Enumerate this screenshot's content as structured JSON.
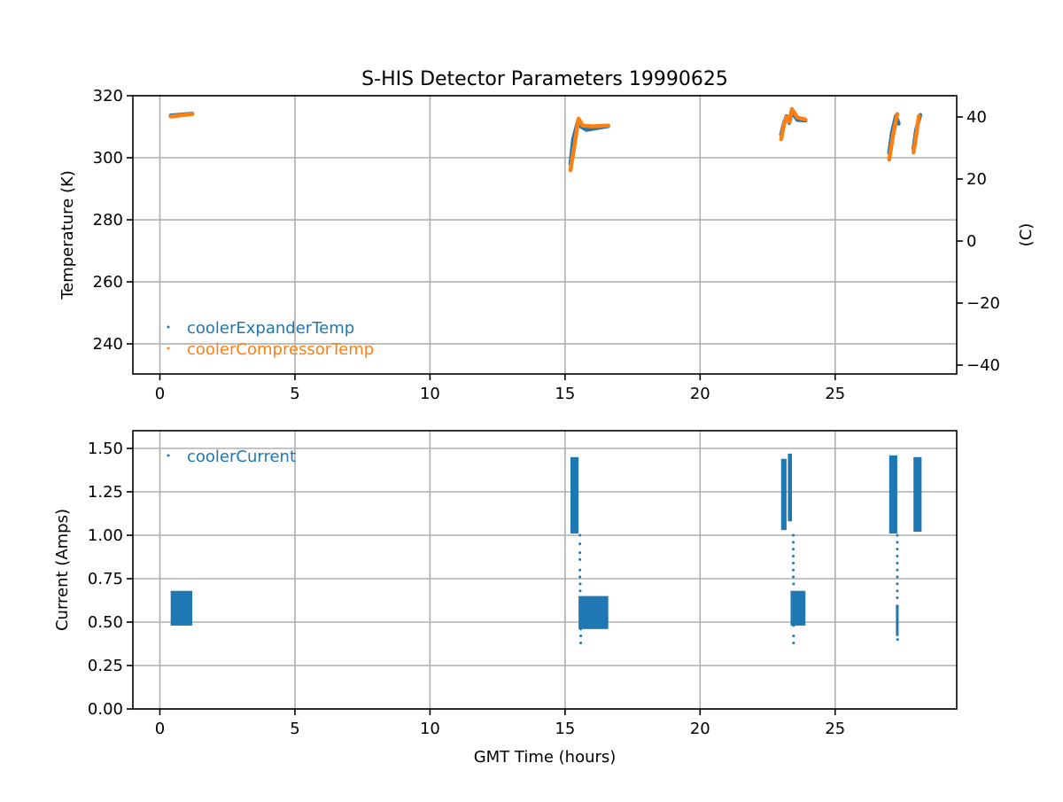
{
  "chart_data": [
    {
      "type": "scatter",
      "title": "S-HIS Detector Parameters 19990625",
      "xlabel": "",
      "ylabel": "Temperature (K)",
      "ylabel_right": "(C)",
      "xlim": [
        -1,
        29.5
      ],
      "ylim": [
        230.3,
        320
      ],
      "ylim_right": [
        -42.85,
        46.85
      ],
      "xticks": [
        0,
        5,
        10,
        15,
        20,
        25
      ],
      "yticks": [
        240,
        260,
        280,
        300,
        320
      ],
      "yticks_right": [
        -40,
        -20,
        0,
        20,
        40
      ],
      "yticklabels_right": [
        "−40",
        "−20",
        "0",
        "20",
        "40"
      ],
      "grid": true,
      "legend": "lower-left",
      "series": [
        {
          "name": "coolerExpanderTemp",
          "color": "#1f77b4",
          "segments": [
            [
              [
                0.4,
                313.6
              ],
              [
                0.8,
                313.9
              ],
              [
                1.2,
                314.2
              ]
            ],
            [
              [
                15.2,
                298
              ],
              [
                15.3,
                306
              ],
              [
                15.5,
                312.4
              ],
              [
                15.6,
                310
              ],
              [
                15.8,
                309.0
              ],
              [
                16.2,
                309.6
              ],
              [
                16.6,
                310.2
              ]
            ],
            [
              [
                23.0,
                307.5
              ],
              [
                23.1,
                311
              ],
              [
                23.2,
                313.4
              ],
              [
                23.3,
                311.2
              ],
              [
                23.4,
                314.8
              ],
              [
                23.6,
                312.2
              ],
              [
                23.9,
                312.0
              ]
            ],
            [
              [
                27.0,
                301.5
              ],
              [
                27.1,
                308
              ],
              [
                27.25,
                313.5
              ],
              [
                27.35,
                311
              ]
            ],
            [
              [
                27.9,
                303
              ],
              [
                28.0,
                309
              ],
              [
                28.15,
                313.8
              ]
            ]
          ]
        },
        {
          "name": "coolerCompressorTemp",
          "color": "#ff7f0e",
          "segments": [
            [
              [
                0.4,
                313.3
              ],
              [
                0.8,
                313.7
              ],
              [
                1.2,
                314.1
              ]
            ],
            [
              [
                15.2,
                296
              ],
              [
                15.35,
                304
              ],
              [
                15.5,
                312.6
              ],
              [
                15.65,
                310.4
              ],
              [
                16.0,
                310.1
              ],
              [
                16.6,
                310.4
              ]
            ],
            [
              [
                23.0,
                306
              ],
              [
                23.1,
                310.5
              ],
              [
                23.2,
                313.1
              ],
              [
                23.3,
                311.5
              ],
              [
                23.4,
                315.7
              ],
              [
                23.6,
                313
              ],
              [
                23.9,
                312.3
              ]
            ],
            [
              [
                27.0,
                299.4
              ],
              [
                27.15,
                307.5
              ],
              [
                27.3,
                314.1
              ]
            ],
            [
              [
                27.9,
                301.7
              ],
              [
                28.0,
                307
              ],
              [
                28.1,
                313.5
              ]
            ]
          ]
        }
      ]
    },
    {
      "type": "scatter",
      "title": "",
      "xlabel": "GMT Time (hours)",
      "ylabel": "Current (Amps)",
      "xlim": [
        -1,
        29.5
      ],
      "ylim": [
        0,
        1.602
      ],
      "xticks": [
        0,
        5,
        10,
        15,
        20,
        25
      ],
      "yticks": [
        0,
        0.25,
        0.5,
        0.75,
        1.0,
        1.25,
        1.5
      ],
      "yticklabels": [
        "0.00",
        "0.25",
        "0.50",
        "0.75",
        "1.00",
        "1.25",
        "1.50"
      ],
      "grid": true,
      "legend": "upper-left",
      "series": [
        {
          "name": "coolerCurrent",
          "color": "#1f77b4",
          "bands": [
            {
              "x": [
                0.4,
                1.2
              ],
              "y": [
                0.48,
                0.68
              ]
            },
            {
              "x": [
                15.2,
                15.5
              ],
              "y": [
                1.01,
                1.45
              ]
            },
            {
              "x": [
                15.5,
                16.6
              ],
              "y": [
                0.46,
                0.65
              ]
            },
            {
              "x": [
                23.0,
                23.2
              ],
              "y": [
                1.03,
                1.44
              ]
            },
            {
              "x": [
                23.25,
                23.4
              ],
              "y": [
                1.08,
                1.47
              ]
            },
            {
              "x": [
                23.35,
                23.9
              ],
              "y": [
                0.48,
                0.68
              ]
            },
            {
              "x": [
                27.0,
                27.3
              ],
              "y": [
                1.01,
                1.46
              ]
            },
            {
              "x": [
                27.25,
                27.35
              ],
              "y": [
                0.42,
                0.6
              ]
            },
            {
              "x": [
                27.9,
                28.2
              ],
              "y": [
                1.02,
                1.45
              ]
            }
          ],
          "points": [
            [
              15.55,
              1.0
            ],
            [
              15.55,
              0.95
            ],
            [
              15.55,
              0.9
            ],
            [
              15.55,
              0.86
            ],
            [
              15.55,
              0.8
            ],
            [
              15.55,
              0.76
            ],
            [
              15.56,
              0.72
            ],
            [
              15.56,
              0.68
            ],
            [
              15.57,
              0.62
            ],
            [
              15.57,
              0.55
            ],
            [
              15.58,
              0.46
            ],
            [
              15.58,
              0.42
            ],
            [
              15.58,
              0.38
            ],
            [
              23.45,
              1.0
            ],
            [
              23.45,
              0.96
            ],
            [
              23.45,
              0.92
            ],
            [
              23.45,
              0.88
            ],
            [
              23.45,
              0.84
            ],
            [
              23.45,
              0.8
            ],
            [
              23.45,
              0.76
            ],
            [
              23.46,
              0.72
            ],
            [
              23.46,
              0.66
            ],
            [
              23.46,
              0.56
            ],
            [
              23.46,
              0.48
            ],
            [
              23.46,
              0.42
            ],
            [
              23.46,
              0.38
            ],
            [
              27.3,
              1.0
            ],
            [
              27.3,
              0.96
            ],
            [
              27.3,
              0.92
            ],
            [
              27.3,
              0.88
            ],
            [
              27.3,
              0.84
            ],
            [
              27.3,
              0.8
            ],
            [
              27.3,
              0.76
            ],
            [
              27.3,
              0.72
            ],
            [
              27.3,
              0.68
            ],
            [
              27.3,
              0.64
            ],
            [
              27.31,
              0.4
            ]
          ]
        }
      ]
    }
  ]
}
